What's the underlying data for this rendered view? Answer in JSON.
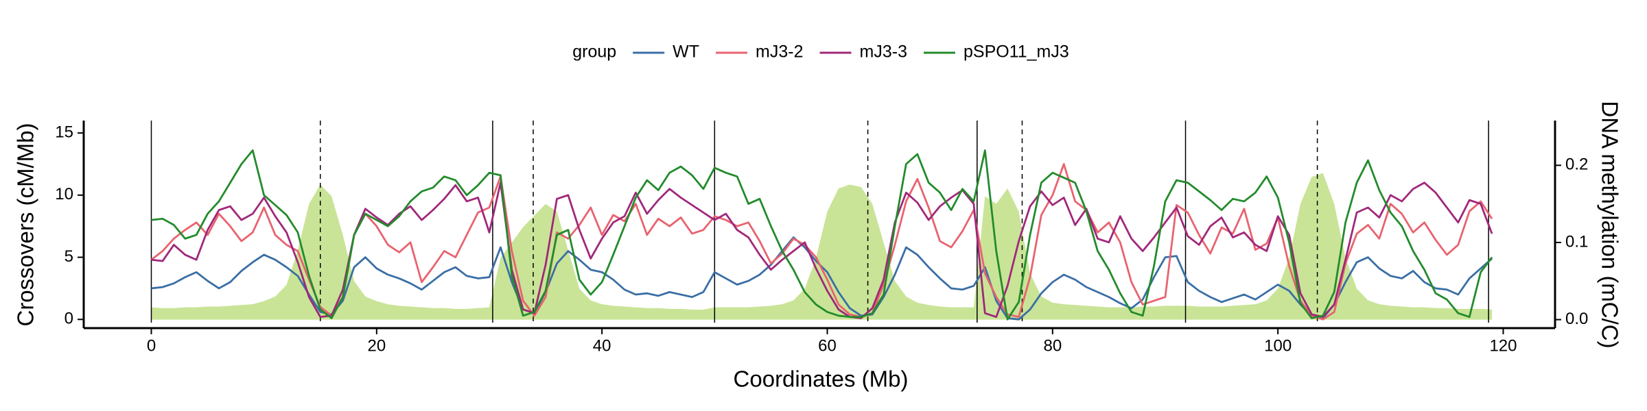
{
  "chart_data": {
    "type": "line",
    "x_label": "Coordinates (Mb)",
    "y_label": "Crossovers (cM/Mb)",
    "y2_label": "DNA methylation (mC/C)",
    "legend_title": "group",
    "legend_position": "top",
    "xlim": [
      -6,
      124.6
    ],
    "ylim": [
      -0.7,
      16
    ],
    "y2lim": [
      -0.011,
      0.258
    ],
    "xticks": [
      0,
      20,
      40,
      60,
      80,
      100,
      120
    ],
    "yticks": [
      0,
      5,
      10,
      15
    ],
    "y2ticks": [
      {
        "value": 0,
        "label": "0.0"
      },
      {
        "value": 0.1,
        "label": "0.1"
      },
      {
        "value": 0.2,
        "label": "0.2"
      }
    ],
    "chromosome_boundaries": [
      0,
      30.3,
      50.0,
      73.3,
      91.8,
      118.7
    ],
    "centromeres": [
      15.0,
      33.9,
      63.6,
      77.3,
      103.5
    ],
    "x": [
      0,
      1,
      2,
      3,
      4,
      5,
      6,
      7,
      8,
      9,
      10,
      11,
      12,
      13,
      14,
      15,
      16,
      17,
      18,
      19,
      20,
      21,
      22,
      23,
      24,
      25,
      26,
      27,
      28,
      29,
      30,
      31,
      32,
      33,
      34,
      35,
      36,
      37,
      38,
      39,
      40,
      41,
      42,
      43,
      44,
      45,
      46,
      47,
      48,
      49,
      50,
      51,
      52,
      53,
      54,
      55,
      56,
      57,
      58,
      59,
      60,
      61,
      62,
      63,
      64,
      65,
      66,
      67,
      68,
      69,
      70,
      71,
      72,
      73,
      74,
      75,
      76,
      77,
      78,
      79,
      80,
      81,
      82,
      83,
      84,
      85,
      86,
      87,
      88,
      89,
      90,
      91,
      92,
      93,
      94,
      95,
      96,
      97,
      98,
      99,
      100,
      101,
      102,
      103,
      104,
      105,
      106,
      107,
      108,
      109,
      110,
      111,
      112,
      113,
      114,
      115,
      116,
      117,
      118,
      119
    ],
    "area": {
      "axis": "y2",
      "color": "#c9e497",
      "values": [
        0.016,
        0.015,
        0.015,
        0.016,
        0.016,
        0.017,
        0.017,
        0.018,
        0.019,
        0.02,
        0.024,
        0.03,
        0.045,
        0.09,
        0.15,
        0.175,
        0.16,
        0.11,
        0.05,
        0.03,
        0.024,
        0.02,
        0.018,
        0.017,
        0.016,
        0.015,
        0.015,
        0.014,
        0.014,
        0.015,
        0.016,
        0.08,
        0.1,
        0.12,
        0.135,
        0.15,
        0.14,
        0.09,
        0.04,
        0.025,
        0.02,
        0.018,
        0.017,
        0.016,
        0.015,
        0.015,
        0.014,
        0.014,
        0.013,
        0.013,
        0.016,
        0.016,
        0.016,
        0.016,
        0.017,
        0.018,
        0.02,
        0.025,
        0.04,
        0.08,
        0.14,
        0.17,
        0.175,
        0.172,
        0.15,
        0.1,
        0.05,
        0.03,
        0.022,
        0.019,
        0.017,
        0.016,
        0.016,
        0.016,
        0.16,
        0.15,
        0.17,
        0.14,
        0.06,
        0.03,
        0.022,
        0.02,
        0.019,
        0.018,
        0.017,
        0.016,
        0.016,
        0.016,
        0.017,
        0.017,
        0.018,
        0.018,
        0.018,
        0.017,
        0.017,
        0.017,
        0.018,
        0.019,
        0.02,
        0.025,
        0.04,
        0.08,
        0.15,
        0.185,
        0.19,
        0.15,
        0.08,
        0.04,
        0.025,
        0.02,
        0.018,
        0.017,
        0.016,
        0.016,
        0.015,
        0.015,
        0.014,
        0.014,
        0.014,
        0.013
      ]
    },
    "series": [
      {
        "name": "WT",
        "color": "#3a6ea5",
        "values": [
          2.5,
          2.6,
          2.9,
          3.4,
          3.8,
          3.1,
          2.5,
          3.0,
          3.9,
          4.6,
          5.2,
          4.8,
          4.2,
          3.5,
          2.0,
          0.6,
          0.4,
          1.5,
          4.2,
          5.0,
          4.1,
          3.6,
          3.3,
          2.9,
          2.4,
          3.1,
          3.8,
          4.2,
          3.5,
          3.3,
          3.4,
          5.8,
          3.0,
          0.8,
          0.5,
          2.2,
          4.5,
          5.5,
          4.8,
          4.0,
          3.8,
          3.2,
          2.4,
          2.0,
          2.1,
          1.9,
          2.2,
          2.0,
          1.8,
          2.2,
          3.8,
          3.3,
          2.8,
          3.1,
          3.6,
          4.4,
          5.5,
          6.6,
          5.8,
          4.7,
          3.8,
          2.2,
          0.9,
          0.3,
          0.4,
          1.8,
          3.6,
          5.8,
          5.2,
          4.2,
          3.3,
          2.5,
          2.4,
          2.7,
          4.2,
          1.5,
          0.1,
          0.0,
          0.8,
          2.1,
          3.0,
          3.6,
          3.2,
          2.6,
          2.2,
          1.8,
          1.3,
          0.9,
          1.6,
          3.4,
          5.0,
          5.1,
          3.0,
          2.3,
          1.8,
          1.4,
          1.7,
          2.0,
          1.6,
          2.2,
          2.8,
          2.3,
          1.2,
          0.3,
          0.1,
          1.2,
          3.0,
          4.6,
          5.0,
          4.1,
          3.5,
          3.3,
          3.9,
          3.0,
          2.5,
          2.4,
          2.0,
          3.3,
          4.1,
          4.9
        ]
      },
      {
        "name": "mJ3-2",
        "color": "#e8636f",
        "values": [
          4.8,
          5.5,
          6.5,
          7.2,
          7.8,
          6.8,
          8.5,
          7.5,
          6.3,
          7.0,
          9.0,
          6.8,
          6.0,
          5.5,
          3.2,
          1.0,
          0.3,
          1.8,
          6.8,
          8.5,
          7.5,
          6.0,
          5.4,
          6.2,
          3.0,
          4.2,
          5.5,
          5.0,
          6.8,
          8.6,
          9.0,
          11.5,
          5.5,
          1.5,
          0.3,
          1.8,
          7.0,
          6.5,
          7.6,
          9.0,
          6.8,
          8.4,
          7.9,
          9.3,
          6.8,
          8.1,
          7.5,
          8.2,
          6.9,
          7.2,
          8.3,
          8.0,
          7.5,
          7.8,
          6.3,
          4.5,
          5.3,
          6.5,
          6.0,
          5.0,
          3.2,
          1.2,
          0.4,
          0.2,
          0.5,
          2.8,
          6.0,
          9.5,
          11.3,
          9.0,
          6.3,
          5.8,
          7.1,
          8.8,
          3.7,
          1.8,
          0.4,
          0.2,
          3.4,
          8.4,
          10.0,
          12.5,
          9.5,
          8.8,
          7.0,
          7.8,
          6.2,
          3.0,
          1.2,
          1.5,
          1.8,
          9.2,
          8.6,
          6.8,
          5.3,
          7.4,
          6.9,
          8.9,
          5.6,
          6.1,
          8.2,
          4.3,
          1.5,
          0.3,
          0.0,
          0.6,
          4.5,
          6.9,
          7.6,
          6.5,
          9.3,
          8.5,
          7.0,
          7.8,
          6.4,
          5.2,
          6.0,
          8.7,
          9.5,
          8.1
        ]
      },
      {
        "name": "mJ3-3",
        "color": "#a0287a",
        "values": [
          4.8,
          4.7,
          6.0,
          5.2,
          4.8,
          7.2,
          8.8,
          9.1,
          8.0,
          8.5,
          9.8,
          8.3,
          7.0,
          4.6,
          1.8,
          0.2,
          0.3,
          2.4,
          6.8,
          8.9,
          8.2,
          7.6,
          8.5,
          9.1,
          8.0,
          8.8,
          9.7,
          10.8,
          9.5,
          9.8,
          7.0,
          11.0,
          4.0,
          0.8,
          0.5,
          4.4,
          9.7,
          10.0,
          7.2,
          4.9,
          6.5,
          7.8,
          8.3,
          10.2,
          8.5,
          9.6,
          10.5,
          9.8,
          9.2,
          8.6,
          8.0,
          8.5,
          7.2,
          6.6,
          5.2,
          4.0,
          4.8,
          5.5,
          6.2,
          4.1,
          2.3,
          0.8,
          0.2,
          0.1,
          0.9,
          3.2,
          7.8,
          10.2,
          9.4,
          8.0,
          9.1,
          9.8,
          10.4,
          9.3,
          0.5,
          0.2,
          2.7,
          6.3,
          9.1,
          10.3,
          9.2,
          9.8,
          7.6,
          8.9,
          6.5,
          6.2,
          8.3,
          6.5,
          5.5,
          6.6,
          7.8,
          9.0,
          6.7,
          6.0,
          7.5,
          8.2,
          6.6,
          7.0,
          6.0,
          5.5,
          8.3,
          6.8,
          2.1,
          0.4,
          0.2,
          1.2,
          4.8,
          8.6,
          9.0,
          8.2,
          10.0,
          9.5,
          10.5,
          11.0,
          10.2,
          9.0,
          7.8,
          9.6,
          9.3,
          6.9
        ]
      },
      {
        "name": "pSPO11_mJ3",
        "color": "#238b2c",
        "values": [
          8.0,
          8.1,
          7.6,
          6.5,
          6.8,
          8.5,
          9.5,
          11.0,
          12.5,
          13.6,
          10.0,
          9.2,
          8.4,
          7.0,
          3.5,
          0.8,
          0.1,
          1.8,
          6.8,
          8.5,
          8.0,
          7.5,
          8.3,
          9.5,
          10.3,
          10.6,
          11.5,
          11.2,
          10.0,
          10.8,
          11.8,
          11.6,
          3.5,
          0.3,
          0.6,
          2.3,
          6.8,
          7.2,
          3.2,
          2.0,
          3.0,
          5.2,
          7.5,
          9.8,
          11.2,
          10.4,
          11.8,
          12.3,
          11.6,
          10.5,
          12.2,
          11.8,
          11.5,
          9.3,
          9.7,
          7.5,
          5.5,
          4.0,
          2.2,
          1.2,
          0.6,
          0.3,
          0.2,
          0.2,
          0.5,
          2.0,
          7.5,
          12.5,
          13.3,
          11.0,
          10.2,
          8.8,
          10.5,
          9.5,
          13.6,
          5.5,
          0.0,
          1.4,
          6.8,
          11.0,
          11.8,
          11.4,
          11.0,
          8.7,
          5.5,
          4.0,
          2.1,
          0.6,
          0.3,
          4.3,
          9.5,
          11.2,
          11.0,
          10.3,
          9.6,
          8.8,
          9.7,
          9.5,
          10.2,
          11.5,
          9.8,
          6.2,
          1.3,
          0.1,
          0.3,
          2.2,
          7.8,
          11.0,
          12.8,
          10.4,
          8.6,
          7.5,
          5.5,
          4.0,
          2.1,
          1.6,
          0.5,
          0.2,
          3.8,
          5.0
        ]
      }
    ]
  }
}
